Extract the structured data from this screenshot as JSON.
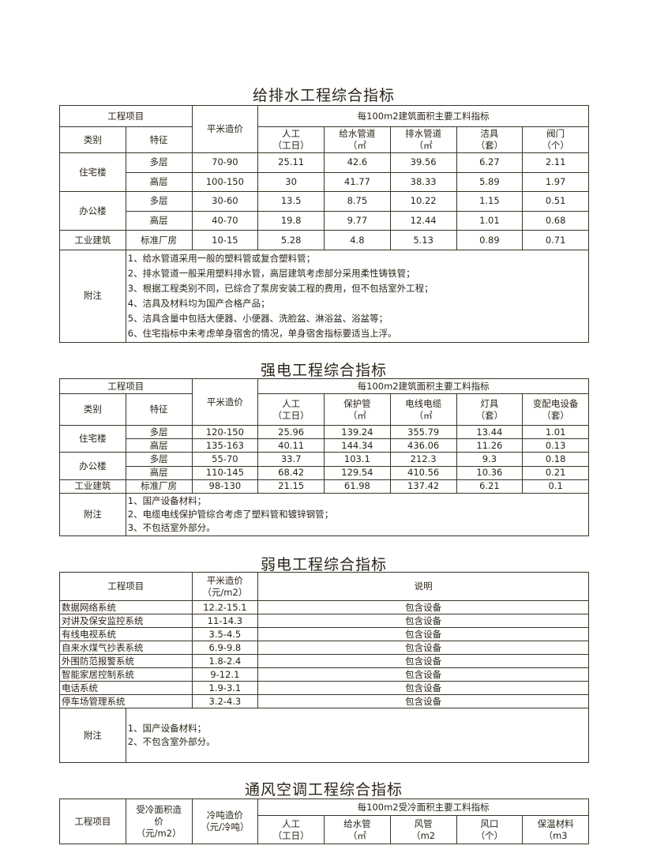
{
  "water": {
    "title": "给排水工程综合指标",
    "header": {
      "project": "工程项目",
      "price": "平米造价",
      "group": "每100m2建筑面积主要工料指标",
      "category": "类别",
      "feature": "特征",
      "cols": [
        [
          "人工",
          "（工日）"
        ],
        [
          "给水管道",
          "（㎡"
        ],
        [
          "排水管道",
          "（㎡"
        ],
        [
          "洁具",
          "（套）"
        ],
        [
          "阀门",
          "（个）"
        ]
      ]
    },
    "rows": [
      {
        "category": "住宅楼",
        "feature": "多层",
        "price": "70-90",
        "values": [
          "25.11",
          "42.6",
          "39.56",
          "6.27",
          "2.11"
        ]
      },
      {
        "category": "",
        "feature": "高层",
        "price": "100-150",
        "values": [
          "30",
          "41.77",
          "38.33",
          "5.89",
          "1.97"
        ]
      },
      {
        "category": "办公楼",
        "feature": "多层",
        "price": "30-60",
        "values": [
          "13.5",
          "8.75",
          "10.22",
          "1.15",
          "0.51"
        ]
      },
      {
        "category": "",
        "feature": "高层",
        "price": "40-70",
        "values": [
          "19.8",
          "9.77",
          "12.44",
          "1.01",
          "0.68"
        ]
      },
      {
        "category": "工业建筑",
        "feature": "标准厂房",
        "price": "10-15",
        "values": [
          "5.28",
          "4.8",
          "5.13",
          "0.89",
          "0.71"
        ]
      }
    ],
    "notes_label": "附注",
    "notes": [
      "1、给水管道采用一般的塑料管或复合塑料管；",
      "2、排水管道一般采用塑料排水管，高层建筑考虑部分采用柔性铸铁管；",
      "3、根据工程类别不同，已综合了泵房安装工程的费用，但不包括室外工程；",
      "4、洁具及材料均为国产合格产品；",
      "5、洁具含量中包括大便器、小便器、洗脸盆、淋浴盆、浴盆等；",
      "6、住宅指标中未考虑单身宿舍的情况，单身宿舍指标要适当上浮。"
    ]
  },
  "power": {
    "title": "强电工程综合指标",
    "header": {
      "project": "工程项目",
      "price": "平米造价",
      "group": "每100m2建筑面积主要工料指标",
      "category": "类别",
      "feature": "特征",
      "cols": [
        [
          "人工",
          "（工日）"
        ],
        [
          "保护管",
          "（㎡"
        ],
        [
          "电线电缆",
          "（㎡"
        ],
        [
          "灯具",
          "（套）"
        ],
        [
          "变配电设备",
          "（套）"
        ]
      ]
    },
    "rows": [
      {
        "category": "住宅楼",
        "feature": "多层",
        "price": "120-150",
        "values": [
          "25.96",
          "139.24",
          "355.79",
          "13.44",
          "1.01"
        ]
      },
      {
        "category": "",
        "feature": "高层",
        "price": "135-163",
        "values": [
          "40.11",
          "144.34",
          "436.06",
          "11.26",
          "0.13"
        ]
      },
      {
        "category": "办公楼",
        "feature": "多层",
        "price": "55-70",
        "values": [
          "33.7",
          "103.1",
          "212.3",
          "9.3",
          "0.18"
        ]
      },
      {
        "category": "",
        "feature": "高层",
        "price": "110-145",
        "values": [
          "68.42",
          "129.54",
          "410.56",
          "10.36",
          "0.21"
        ]
      },
      {
        "category": "工业建筑",
        "feature": "标准厂房",
        "price": "98-130",
        "values": [
          "21.15",
          "61.98",
          "137.42",
          "6.21",
          "0.1"
        ]
      }
    ],
    "notes_label": "附注",
    "notes": [
      "1、国产设备材料；",
      "2、电缆电线保护管综合考虑了塑料管和镀锌钢管；",
      "3、不包括室外部分。"
    ]
  },
  "weak": {
    "title": "弱电工程综合指标",
    "header": {
      "project": "工程项目",
      "price": "平米造价",
      "unit": "（元/m2）",
      "desc": "说明"
    },
    "rows": [
      [
        "数据网络系统",
        "12.2-15.1",
        "包含设备"
      ],
      [
        "对讲及保安监控系统",
        "11-14.3",
        "包含设备"
      ],
      [
        "有线电视系统",
        "3.5-4.5",
        "包含设备"
      ],
      [
        "自来水煤气抄表系统",
        "6.9-9.8",
        "包含设备"
      ],
      [
        "外围防范报警系统",
        "1.8-2.4",
        "包含设备"
      ],
      [
        "智能家居控制系统",
        "9-12.1",
        "包含设备"
      ],
      [
        "电话系统",
        "1.9-3.1",
        "包含设备"
      ],
      [
        "停车场管理系统",
        "3.2-4.3",
        "包含设备"
      ]
    ],
    "notes_label": "附注",
    "notes": [
      "1、国产设备材料；",
      "2、不包含室外部分。"
    ]
  },
  "hvac": {
    "title": "通风空调工程综合指标",
    "header": {
      "project": "工程项目",
      "area_price": [
        "受冷面积造",
        "价",
        "（元/m2）"
      ],
      "ton_price": [
        "冷吨造价",
        "（元/冷吨）"
      ],
      "group": "每100m2受冷面积主要工料指标",
      "cols": [
        [
          "人工",
          "（工日）"
        ],
        [
          "给水管",
          "（㎡"
        ],
        [
          "风管",
          "（m2"
        ],
        [
          "风口",
          "（个）"
        ],
        [
          "保温材料",
          "（m3"
        ]
      ]
    }
  }
}
